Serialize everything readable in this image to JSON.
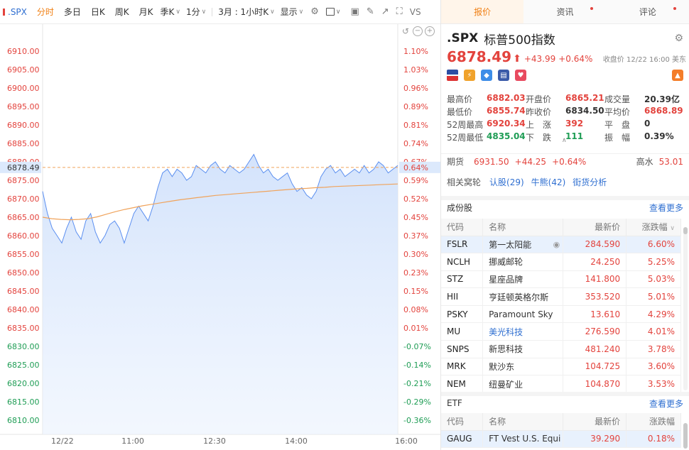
{
  "toolbar": {
    "symbol": ".SPX",
    "periods": [
      "分时",
      "多日",
      "日K",
      "周K",
      "月K"
    ],
    "active_period": "分时",
    "season_dd": "季K",
    "minute_dd": "1分",
    "timeframe_dd": "3月 : 1小时K",
    "display_dd": "显示",
    "vs_label": "VS"
  },
  "right_tabs": [
    {
      "label": "报价",
      "active": true,
      "dot": false
    },
    {
      "label": "资讯",
      "active": false,
      "dot": true
    },
    {
      "label": "评论",
      "active": false,
      "dot": true
    }
  ],
  "quote": {
    "symbol": ".SPX",
    "name": "标普500指数",
    "last": "6878.49",
    "change": "+43.99",
    "change_pct": "+0.64%",
    "close_info": "收盘价 12/22 16:00 美东"
  },
  "stats": [
    [
      {
        "k": "最高价",
        "v": "6882.03",
        "c": "red"
      },
      {
        "k": "开盘价",
        "v": "6865.21",
        "c": "red"
      },
      {
        "k": "成交量",
        "v": "20.39亿",
        "c": "blk"
      }
    ],
    [
      {
        "k": "最低价",
        "v": "6855.74",
        "c": "red"
      },
      {
        "k": "昨收价",
        "v": "6834.50",
        "c": "blk"
      },
      {
        "k": "平均价",
        "v": "6868.89",
        "c": "red"
      }
    ],
    [
      {
        "k": "52周最高",
        "v": "6920.34",
        "c": "red"
      },
      {
        "k": "上　涨",
        "v": "392",
        "c": "red"
      },
      {
        "k": "平　盘",
        "v": "0",
        "c": "blk"
      }
    ],
    [
      {
        "k": "52周最低",
        "v": "4835.04",
        "c": "green"
      },
      {
        "k": "下　跌",
        "v": "111",
        "c": "green"
      },
      {
        "k": "振　幅",
        "v": "0.39%",
        "c": "blk"
      }
    ]
  ],
  "futures": {
    "label": "期货",
    "price": "6931.50",
    "change": "+44.25",
    "pct": "+0.64%",
    "hk_label": "高水",
    "hk_value": "53.01"
  },
  "related": {
    "label": "相关窝轮",
    "links": [
      "认股(29)",
      "牛熊(42)",
      "街货分析"
    ]
  },
  "constituents": {
    "title": "成份股",
    "more": "查看更多",
    "headers": [
      "代码",
      "名称",
      "最新价",
      "涨跌幅"
    ],
    "rows": [
      {
        "code": "FSLR",
        "name": "第一太阳能",
        "price": "284.590",
        "pct": "6.60%",
        "blue": false
      },
      {
        "code": "NCLH",
        "name": "挪威邮轮",
        "price": "24.250",
        "pct": "5.25%",
        "blue": false
      },
      {
        "code": "STZ",
        "name": "星座品牌",
        "price": "141.800",
        "pct": "5.03%",
        "blue": false
      },
      {
        "code": "HII",
        "name": "亨廷顿英格尔斯",
        "price": "353.520",
        "pct": "5.01%",
        "blue": false
      },
      {
        "code": "PSKY",
        "name": "Paramount Sky",
        "price": "13.610",
        "pct": "4.29%",
        "blue": false
      },
      {
        "code": "MU",
        "name": "美光科技",
        "price": "276.590",
        "pct": "4.01%",
        "blue": true
      },
      {
        "code": "SNPS",
        "name": "新思科技",
        "price": "481.240",
        "pct": "3.78%",
        "blue": false
      },
      {
        "code": "MRK",
        "name": "默沙东",
        "price": "104.725",
        "pct": "3.60%",
        "blue": false
      },
      {
        "code": "NEM",
        "name": "纽曼矿业",
        "price": "104.870",
        "pct": "3.53%",
        "blue": false
      }
    ]
  },
  "etf": {
    "title": "ETF",
    "more": "查看更多",
    "headers": [
      "代码",
      "名称",
      "最新价",
      "涨跌幅"
    ],
    "rows": [
      {
        "code": "GAUG",
        "name": "FT Vest U.S. Equi",
        "price": "39.290",
        "pct": "0.18%"
      }
    ]
  },
  "chart_data": {
    "type": "line",
    "prev_close": 6834.5,
    "last_price_label": "6878.49",
    "y_ticks": [
      "6910.00",
      "6905.00",
      "6900.00",
      "6895.00",
      "6890.00",
      "6885.00",
      "6880.00",
      "6875.00",
      "6870.00",
      "6865.00",
      "6860.00",
      "6855.00",
      "6850.00",
      "6845.00",
      "6840.00",
      "6835.00",
      "6830.00",
      "6825.00",
      "6820.00",
      "6815.00",
      "6810.00"
    ],
    "pct_ticks": [
      "1.10%",
      "1.03%",
      "0.96%",
      "0.89%",
      "0.81%",
      "0.74%",
      "0.67%",
      "0.59%",
      "0.52%",
      "0.45%",
      "0.37%",
      "0.30%",
      "0.23%",
      "0.15%",
      "0.08%",
      "0.01%",
      "-0.07%",
      "-0.14%",
      "-0.21%",
      "-0.29%",
      "-0.36%"
    ],
    "right_highlight_pct": "0.64%",
    "x_labels": [
      "12/22",
      "11:00",
      "12:30",
      "14:00",
      "16:00"
    ],
    "series": [
      {
        "name": "price",
        "color": "#5b8ff0",
        "values": [
          6872,
          6866,
          6862,
          6860,
          6858,
          6862,
          6865,
          6861,
          6859,
          6864,
          6866,
          6861,
          6858,
          6860,
          6863,
          6864,
          6862,
          6858,
          6862,
          6866,
          6868,
          6866,
          6864,
          6868,
          6873,
          6877,
          6878,
          6876,
          6878,
          6877,
          6875,
          6876,
          6879,
          6878,
          6877,
          6879,
          6880,
          6878,
          6877,
          6879,
          6878,
          6877,
          6878,
          6880,
          6882,
          6879,
          6877,
          6878,
          6876,
          6875,
          6876,
          6877,
          6874,
          6872,
          6873,
          6871,
          6870,
          6872,
          6876,
          6878,
          6879,
          6877,
          6878,
          6876,
          6877,
          6878,
          6877,
          6879,
          6877,
          6878,
          6880,
          6879,
          6877,
          6878,
          6879
        ]
      },
      {
        "name": "average",
        "color": "#f0a35b",
        "values": [
          6865,
          6864.6,
          6864.4,
          6864.3,
          6864.4,
          6864.6,
          6865.1,
          6865.8,
          6866.5,
          6867.1,
          6867.6,
          6868.1,
          6868.5,
          6868.9,
          6869.3,
          6869.7,
          6870.0,
          6870.3,
          6870.6,
          6870.9,
          6871.1,
          6871.3,
          6871.5,
          6871.7,
          6871.9,
          6872.1,
          6872.3,
          6872.5,
          6872.7,
          6872.8,
          6873.0,
          6873.1,
          6873.3,
          6873.4,
          6873.5,
          6873.6,
          6873.7,
          6873.8,
          6873.9,
          6874.0
        ]
      }
    ]
  }
}
